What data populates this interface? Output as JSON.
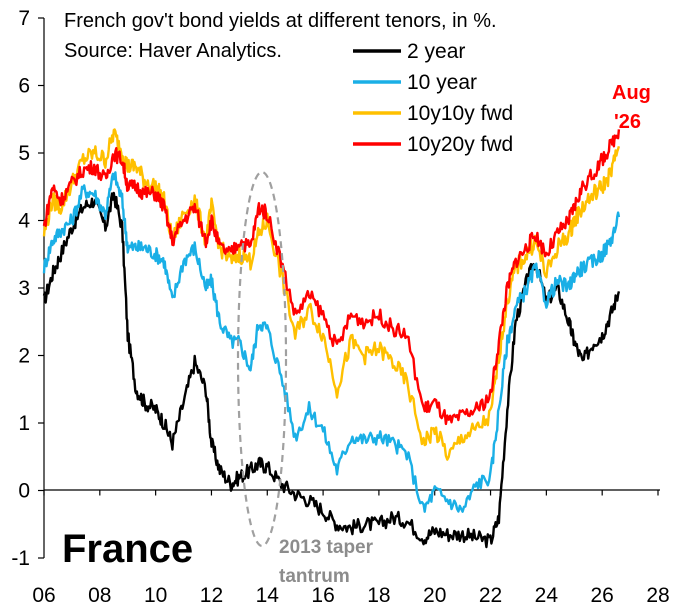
{
  "chart_data": {
    "type": "line",
    "title": "French gov't bond yields at different tenors, in %.",
    "subtitle": "Source: Haver Analytics.",
    "chart_label": "France",
    "xlim": [
      2006,
      2028
    ],
    "ylim": [
      -1,
      7
    ],
    "x_ticks": [
      2006,
      2008,
      2010,
      2012,
      2014,
      2016,
      2018,
      2020,
      2022,
      2024,
      2026,
      2028
    ],
    "x_tick_labels": [
      "06",
      "08",
      "10",
      "12",
      "14",
      "16",
      "18",
      "20",
      "22",
      "24",
      "26",
      "28"
    ],
    "y_ticks": [
      -1,
      0,
      1,
      2,
      3,
      4,
      5,
      6,
      7
    ],
    "y_tick_labels": [
      "-1",
      "0",
      "1",
      "2",
      "3",
      "4",
      "5",
      "6",
      "7"
    ],
    "grid": false,
    "legend_position": "top-right",
    "series": [
      {
        "name": "2 year",
        "color": "#000000",
        "points": [
          [
            2006.0,
            2.8
          ],
          [
            2006.3,
            3.2
          ],
          [
            2006.6,
            3.5
          ],
          [
            2007.0,
            3.9
          ],
          [
            2007.4,
            4.2
          ],
          [
            2007.8,
            4.3
          ],
          [
            2008.2,
            3.9
          ],
          [
            2008.5,
            4.4
          ],
          [
            2008.8,
            3.9
          ],
          [
            2009.0,
            2.3
          ],
          [
            2009.3,
            1.5
          ],
          [
            2009.6,
            1.3
          ],
          [
            2010.0,
            1.2
          ],
          [
            2010.3,
            1.0
          ],
          [
            2010.6,
            0.7
          ],
          [
            2011.0,
            1.3
          ],
          [
            2011.4,
            1.9
          ],
          [
            2011.8,
            1.5
          ],
          [
            2012.0,
            0.7
          ],
          [
            2012.3,
            0.3
          ],
          [
            2012.7,
            0.1
          ],
          [
            2013.0,
            0.2
          ],
          [
            2013.4,
            0.3
          ],
          [
            2013.7,
            0.4
          ],
          [
            2014.0,
            0.35
          ],
          [
            2014.5,
            0.1
          ],
          [
            2015.0,
            -0.05
          ],
          [
            2015.5,
            -0.15
          ],
          [
            2016.0,
            -0.3
          ],
          [
            2016.5,
            -0.5
          ],
          [
            2017.0,
            -0.55
          ],
          [
            2017.5,
            -0.5
          ],
          [
            2018.0,
            -0.5
          ],
          [
            2018.5,
            -0.4
          ],
          [
            2019.0,
            -0.45
          ],
          [
            2019.6,
            -0.7
          ],
          [
            2020.0,
            -0.6
          ],
          [
            2020.5,
            -0.65
          ],
          [
            2021.0,
            -0.65
          ],
          [
            2021.5,
            -0.7
          ],
          [
            2022.0,
            -0.75
          ],
          [
            2022.3,
            -0.4
          ],
          [
            2022.6,
            1.2
          ],
          [
            2022.9,
            2.5
          ],
          [
            2023.3,
            3.1
          ],
          [
            2023.6,
            3.4
          ],
          [
            2024.0,
            2.8
          ],
          [
            2024.4,
            3.0
          ],
          [
            2024.8,
            2.5
          ],
          [
            2025.0,
            2.2
          ],
          [
            2025.3,
            1.9
          ],
          [
            2025.7,
            2.2
          ],
          [
            2026.0,
            2.3
          ],
          [
            2026.3,
            2.6
          ],
          [
            2026.6,
            2.95
          ]
        ]
      },
      {
        "name": "10 year",
        "color": "#1aafe6",
        "points": [
          [
            2006.0,
            3.3
          ],
          [
            2006.3,
            3.7
          ],
          [
            2006.6,
            3.85
          ],
          [
            2007.0,
            4.0
          ],
          [
            2007.4,
            4.45
          ],
          [
            2007.8,
            4.4
          ],
          [
            2008.2,
            4.1
          ],
          [
            2008.5,
            4.7
          ],
          [
            2008.8,
            4.3
          ],
          [
            2009.0,
            3.6
          ],
          [
            2009.3,
            3.6
          ],
          [
            2009.6,
            3.6
          ],
          [
            2010.0,
            3.5
          ],
          [
            2010.3,
            3.4
          ],
          [
            2010.6,
            2.8
          ],
          [
            2011.0,
            3.4
          ],
          [
            2011.4,
            3.6
          ],
          [
            2011.8,
            3.0
          ],
          [
            2012.0,
            3.1
          ],
          [
            2012.3,
            2.5
          ],
          [
            2012.7,
            2.2
          ],
          [
            2013.0,
            2.2
          ],
          [
            2013.4,
            1.8
          ],
          [
            2013.7,
            2.5
          ],
          [
            2014.0,
            2.4
          ],
          [
            2014.5,
            1.7
          ],
          [
            2015.0,
            0.8
          ],
          [
            2015.5,
            1.2
          ],
          [
            2016.0,
            0.9
          ],
          [
            2016.5,
            0.3
          ],
          [
            2017.0,
            0.8
          ],
          [
            2017.5,
            0.75
          ],
          [
            2018.0,
            0.8
          ],
          [
            2018.5,
            0.7
          ],
          [
            2019.0,
            0.55
          ],
          [
            2019.6,
            -0.3
          ],
          [
            2020.0,
            0.0
          ],
          [
            2020.5,
            -0.15
          ],
          [
            2021.0,
            -0.3
          ],
          [
            2021.5,
            0.1
          ],
          [
            2022.0,
            0.2
          ],
          [
            2022.3,
            1.2
          ],
          [
            2022.6,
            2.2
          ],
          [
            2022.9,
            2.7
          ],
          [
            2023.3,
            3.0
          ],
          [
            2023.6,
            3.3
          ],
          [
            2024.0,
            2.8
          ],
          [
            2024.4,
            3.1
          ],
          [
            2024.8,
            3.0
          ],
          [
            2025.0,
            3.2
          ],
          [
            2025.3,
            3.3
          ],
          [
            2025.7,
            3.4
          ],
          [
            2026.0,
            3.5
          ],
          [
            2026.3,
            3.7
          ],
          [
            2026.6,
            4.05
          ]
        ]
      },
      {
        "name": "10y10y fwd",
        "color": "#ffc000",
        "points": [
          [
            2006.0,
            3.8
          ],
          [
            2006.3,
            4.3
          ],
          [
            2006.6,
            4.2
          ],
          [
            2007.0,
            4.55
          ],
          [
            2007.4,
            4.9
          ],
          [
            2007.8,
            5.0
          ],
          [
            2008.2,
            4.9
          ],
          [
            2008.5,
            5.3
          ],
          [
            2008.8,
            5.0
          ],
          [
            2009.0,
            4.8
          ],
          [
            2009.3,
            4.8
          ],
          [
            2009.6,
            4.6
          ],
          [
            2010.0,
            4.5
          ],
          [
            2010.3,
            4.3
          ],
          [
            2010.6,
            3.7
          ],
          [
            2011.0,
            4.1
          ],
          [
            2011.4,
            4.3
          ],
          [
            2011.8,
            3.7
          ],
          [
            2012.0,
            4.2
          ],
          [
            2012.3,
            3.6
          ],
          [
            2012.7,
            3.4
          ],
          [
            2013.0,
            3.5
          ],
          [
            2013.4,
            3.4
          ],
          [
            2013.7,
            3.8
          ],
          [
            2014.0,
            4.0
          ],
          [
            2014.5,
            3.2
          ],
          [
            2015.0,
            2.3
          ],
          [
            2015.5,
            2.7
          ],
          [
            2016.0,
            2.3
          ],
          [
            2016.5,
            1.5
          ],
          [
            2017.0,
            2.2
          ],
          [
            2017.5,
            2.0
          ],
          [
            2018.0,
            2.1
          ],
          [
            2018.5,
            1.9
          ],
          [
            2019.0,
            1.6
          ],
          [
            2019.6,
            0.7
          ],
          [
            2020.0,
            0.9
          ],
          [
            2020.5,
            0.5
          ],
          [
            2021.0,
            0.8
          ],
          [
            2021.5,
            0.9
          ],
          [
            2022.0,
            1.1
          ],
          [
            2022.3,
            2.0
          ],
          [
            2022.6,
            2.8
          ],
          [
            2022.9,
            3.3
          ],
          [
            2023.3,
            3.5
          ],
          [
            2023.6,
            3.7
          ],
          [
            2024.0,
            3.2
          ],
          [
            2024.4,
            3.6
          ],
          [
            2024.8,
            3.8
          ],
          [
            2025.0,
            4.0
          ],
          [
            2025.3,
            4.2
          ],
          [
            2025.7,
            4.4
          ],
          [
            2026.0,
            4.5
          ],
          [
            2026.3,
            4.7
          ],
          [
            2026.6,
            5.1
          ]
        ]
      },
      {
        "name": "10y20y fwd",
        "color": "#ff0000",
        "points": [
          [
            2006.0,
            3.9
          ],
          [
            2006.3,
            4.5
          ],
          [
            2006.6,
            4.3
          ],
          [
            2007.0,
            4.55
          ],
          [
            2007.4,
            4.75
          ],
          [
            2007.8,
            4.8
          ],
          [
            2008.2,
            4.6
          ],
          [
            2008.5,
            5.0
          ],
          [
            2008.8,
            4.9
          ],
          [
            2009.0,
            4.5
          ],
          [
            2009.3,
            4.5
          ],
          [
            2009.6,
            4.4
          ],
          [
            2010.0,
            4.4
          ],
          [
            2010.3,
            4.2
          ],
          [
            2010.6,
            3.7
          ],
          [
            2011.0,
            4.0
          ],
          [
            2011.4,
            4.2
          ],
          [
            2011.8,
            3.7
          ],
          [
            2012.0,
            4.0
          ],
          [
            2012.3,
            3.6
          ],
          [
            2012.7,
            3.5
          ],
          [
            2013.0,
            3.7
          ],
          [
            2013.4,
            3.6
          ],
          [
            2013.7,
            4.2
          ],
          [
            2014.0,
            4.1
          ],
          [
            2014.5,
            3.4
          ],
          [
            2015.0,
            2.6
          ],
          [
            2015.5,
            2.9
          ],
          [
            2016.0,
            2.6
          ],
          [
            2016.5,
            2.1
          ],
          [
            2017.0,
            2.6
          ],
          [
            2017.5,
            2.5
          ],
          [
            2018.0,
            2.6
          ],
          [
            2018.5,
            2.4
          ],
          [
            2019.0,
            2.3
          ],
          [
            2019.6,
            1.2
          ],
          [
            2020.0,
            1.3
          ],
          [
            2020.5,
            1.0
          ],
          [
            2021.0,
            1.1
          ],
          [
            2021.5,
            1.2
          ],
          [
            2022.0,
            1.4
          ],
          [
            2022.3,
            2.2
          ],
          [
            2022.6,
            3.0
          ],
          [
            2022.9,
            3.4
          ],
          [
            2023.3,
            3.6
          ],
          [
            2023.6,
            3.8
          ],
          [
            2024.0,
            3.5
          ],
          [
            2024.4,
            3.8
          ],
          [
            2024.8,
            4.0
          ],
          [
            2025.0,
            4.2
          ],
          [
            2025.3,
            4.5
          ],
          [
            2025.7,
            4.7
          ],
          [
            2026.0,
            4.9
          ],
          [
            2026.3,
            5.1
          ],
          [
            2026.6,
            5.35
          ]
        ]
      }
    ],
    "annotations": {
      "taper_label": "2013 taper tantrum",
      "taper_line1": "2013 taper",
      "taper_line2": "tantrum",
      "aug_line1": "Aug",
      "aug_line2": "'26"
    }
  }
}
